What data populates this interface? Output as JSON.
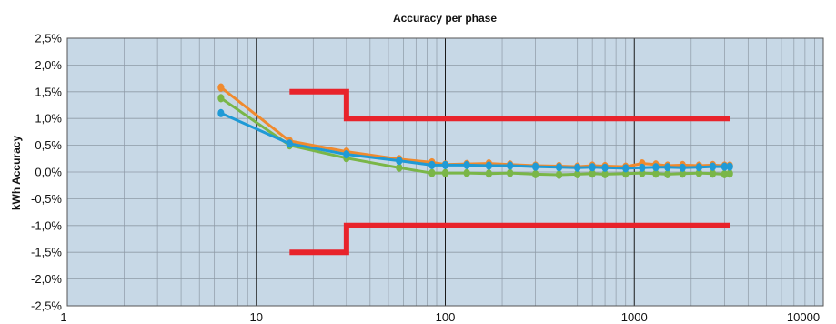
{
  "chart_data": {
    "type": "line",
    "title": "Accuracy per phase",
    "xlabel": "",
    "ylabel": "kWh Accuracy",
    "x_scale": "log",
    "xlim": [
      1,
      10000
    ],
    "ylim": [
      -2.5,
      2.5
    ],
    "x_ticks": [
      1,
      10,
      100,
      1000,
      10000
    ],
    "x_tick_labels": [
      "1",
      "10",
      "100",
      "1000",
      "10000"
    ],
    "y_ticks": [
      2.5,
      2.0,
      1.5,
      1.0,
      0.5,
      0.0,
      -0.5,
      -1.0,
      -1.5,
      -2.0,
      -2.5
    ],
    "y_tick_labels": [
      "2,5%",
      "2,0%",
      "1,5%",
      "1,0%",
      "0,5%",
      "0,0%",
      "-0,5%",
      "-1,0%",
      "-1,5%",
      "-2,0%",
      "-2,5%"
    ],
    "grid": true,
    "colors": {
      "plot_background": "#c7d8e6",
      "grid_minor": "#8e9aa6",
      "grid_major": "#1a1a1a",
      "limits": "#e8232b"
    },
    "series": [
      {
        "color": "#f08a2e",
        "x": [
          6.5,
          15,
          30,
          57,
          85,
          100,
          130,
          170,
          220,
          300,
          400,
          500,
          600,
          700,
          900,
          1100,
          1300,
          1500,
          1800,
          2200,
          2600,
          3000,
          3200
        ],
        "y": [
          1.58,
          0.58,
          0.38,
          0.24,
          0.18,
          0.14,
          0.15,
          0.16,
          0.14,
          0.12,
          0.11,
          0.1,
          0.12,
          0.11,
          0.1,
          0.16,
          0.14,
          0.12,
          0.13,
          0.12,
          0.13,
          0.12,
          0.12
        ]
      },
      {
        "color": "#7ab648",
        "x": [
          6.5,
          15,
          30,
          57,
          85,
          100,
          130,
          170,
          220,
          300,
          400,
          500,
          600,
          700,
          900,
          1100,
          1300,
          1500,
          1800,
          2200,
          2600,
          3000,
          3200
        ],
        "y": [
          1.38,
          0.5,
          0.26,
          0.08,
          -0.02,
          -0.02,
          -0.02,
          -0.03,
          -0.02,
          -0.04,
          -0.05,
          -0.04,
          -0.03,
          -0.04,
          -0.03,
          -0.02,
          -0.03,
          -0.04,
          -0.03,
          -0.02,
          -0.03,
          -0.04,
          -0.03
        ]
      },
      {
        "color": "#1f9ad6",
        "x": [
          6.5,
          15,
          30,
          57,
          85,
          100,
          130,
          170,
          220,
          300,
          400,
          500,
          600,
          700,
          900,
          1100,
          1300,
          1500,
          1800,
          2200,
          2600,
          3000,
          3200
        ],
        "y": [
          1.1,
          0.53,
          0.33,
          0.21,
          0.13,
          0.13,
          0.13,
          0.12,
          0.12,
          0.1,
          0.09,
          0.08,
          0.09,
          0.08,
          0.07,
          0.08,
          0.09,
          0.09,
          0.08,
          0.09,
          0.1,
          0.1,
          0.1
        ]
      }
    ],
    "limit_lines": [
      {
        "x": [
          15,
          30,
          30,
          3200
        ],
        "y": [
          1.5,
          1.5,
          1.0,
          1.0
        ]
      },
      {
        "x": [
          15,
          30,
          30,
          3200
        ],
        "y": [
          -1.5,
          -1.5,
          -1.0,
          -1.0
        ]
      }
    ]
  }
}
